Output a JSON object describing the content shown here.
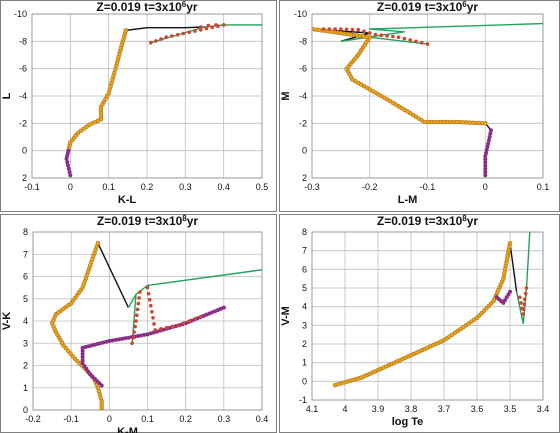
{
  "colors": {
    "track_black": "#111111",
    "track_green": "#22a15a",
    "marker_orange": "#f0a21a",
    "marker_purple": "#8a2e8a",
    "marker_red": "#d0432e",
    "grid": "#bdbdbd",
    "panel_border": "#7f7f7f"
  },
  "chart_data": [
    {
      "id": "panel_LK",
      "type": "line",
      "title": {
        "main": "Z=0.019  t=3x10",
        "exp": "6",
        "unit": "yr"
      },
      "xlabel": "K-L",
      "ylabel": "L",
      "xlim": [
        -0.1,
        0.5
      ],
      "ylim": [
        -10,
        2
      ],
      "y_inverted": true,
      "xticks": [
        -0.1,
        0,
        0.1,
        0.2,
        0.3,
        0.4,
        0.5
      ],
      "yticks": [
        -10,
        -8,
        -6,
        -4,
        -2,
        0,
        2
      ],
      "xticklabels": [
        "-0.1",
        "0",
        "0.1",
        "0.2",
        "0.3",
        "0.4",
        "0.5"
      ],
      "yticklabels": [
        "-10",
        "-8",
        "-6",
        "-4",
        "-2",
        "0",
        "2"
      ],
      "grid": true,
      "series": [
        {
          "style": "black",
          "points": [
            [
              0.0,
              1.8
            ],
            [
              -0.01,
              0.6
            ],
            [
              -0.005,
              0.0
            ],
            [
              0.0,
              -0.6
            ],
            [
              0.02,
              -1.3
            ],
            [
              0.05,
              -1.9
            ],
            [
              0.08,
              -2.3
            ],
            [
              0.08,
              -3.2
            ],
            [
              0.1,
              -4.2
            ],
            [
              0.11,
              -5.2
            ],
            [
              0.12,
              -6.2
            ],
            [
              0.13,
              -7.3
            ],
            [
              0.145,
              -8.8
            ],
            [
              0.2,
              -9.0
            ],
            [
              0.3,
              -9.0
            ],
            [
              0.35,
              -9.05
            ]
          ]
        },
        {
          "style": "green",
          "points": [
            [
              0.35,
              -9.05
            ],
            [
              0.4,
              -9.2
            ],
            [
              0.5,
              -9.2
            ]
          ]
        },
        {
          "style": "green",
          "points": [
            [
              0.35,
              -9.05
            ],
            [
              0.21,
              -7.9
            ]
          ]
        },
        {
          "style": "orange",
          "points": [
            [
              -0.005,
              0.0
            ],
            [
              0.0,
              -0.6
            ],
            [
              0.02,
              -1.3
            ],
            [
              0.05,
              -1.9
            ],
            [
              0.08,
              -2.3
            ],
            [
              0.08,
              -3.2
            ],
            [
              0.1,
              -4.2
            ],
            [
              0.11,
              -5.2
            ],
            [
              0.12,
              -6.2
            ],
            [
              0.13,
              -7.3
            ],
            [
              0.145,
              -8.8
            ]
          ]
        },
        {
          "style": "purple",
          "points": [
            [
              0.0,
              1.8
            ],
            [
              -0.01,
              0.6
            ],
            [
              -0.005,
              0.0
            ]
          ]
        },
        {
          "style": "red",
          "points": [
            [
              0.34,
              -9.05
            ],
            [
              0.36,
              -9.15
            ],
            [
              0.38,
              -9.2
            ],
            [
              0.4,
              -9.2
            ],
            [
              0.25,
              -8.3
            ],
            [
              0.21,
              -7.9
            ]
          ]
        }
      ]
    },
    {
      "id": "panel_ML",
      "type": "line",
      "title": {
        "main": "Z=0.019  t=3x10",
        "exp": "6",
        "unit": "yr"
      },
      "xlabel": "L-M",
      "ylabel": "M",
      "xlim": [
        -0.3,
        0.1
      ],
      "ylim": [
        -10,
        2
      ],
      "y_inverted": true,
      "xticks": [
        -0.3,
        -0.2,
        -0.1,
        0,
        0.1
      ],
      "yticks": [
        -10,
        -8,
        -6,
        -4,
        -2,
        0,
        2
      ],
      "xticklabels": [
        "-0.3",
        "-0.2",
        "-0.1",
        "0",
        "0.1"
      ],
      "yticklabels": [
        "-10",
        "-8",
        "-6",
        "-4",
        "-2",
        "0",
        "2"
      ],
      "grid": true,
      "series": [
        {
          "style": "black",
          "points": [
            [
              0.0,
              1.8
            ],
            [
              0.0,
              0.4
            ],
            [
              0.005,
              -0.5
            ],
            [
              0.01,
              -1.5
            ],
            [
              0.0,
              -2.0
            ],
            [
              -0.05,
              -2.1
            ],
            [
              -0.105,
              -2.1
            ],
            [
              -0.14,
              -3.0
            ],
            [
              -0.18,
              -4.0
            ],
            [
              -0.23,
              -5.2
            ],
            [
              -0.24,
              -6.0
            ],
            [
              -0.22,
              -7.0
            ],
            [
              -0.2,
              -8.3
            ],
            [
              -0.3,
              -8.9
            ],
            [
              -0.2,
              -8.6
            ],
            [
              -0.25,
              -8.0
            ]
          ]
        },
        {
          "style": "green",
          "points": [
            [
              -0.25,
              -8.0
            ],
            [
              -0.14,
              -8.7
            ],
            [
              -0.2,
              -8.9
            ],
            [
              0.1,
              -9.3
            ]
          ]
        },
        {
          "style": "green",
          "points": [
            [
              -0.2,
              -8.3
            ],
            [
              -0.1,
              -7.8
            ]
          ]
        },
        {
          "style": "orange",
          "points": [
            [
              0.0,
              -2.0
            ],
            [
              -0.05,
              -2.1
            ],
            [
              -0.105,
              -2.1
            ],
            [
              -0.14,
              -3.0
            ],
            [
              -0.18,
              -4.0
            ],
            [
              -0.23,
              -5.2
            ],
            [
              -0.24,
              -6.0
            ],
            [
              -0.22,
              -7.0
            ],
            [
              -0.2,
              -8.3
            ],
            [
              -0.3,
              -8.9
            ]
          ]
        },
        {
          "style": "purple",
          "points": [
            [
              0.0,
              1.8
            ],
            [
              0.0,
              0.4
            ],
            [
              0.005,
              -0.5
            ],
            [
              0.01,
              -1.5
            ]
          ]
        },
        {
          "style": "red",
          "points": [
            [
              -0.28,
              -8.9
            ],
            [
              -0.25,
              -8.9
            ],
            [
              -0.22,
              -8.85
            ],
            [
              -0.19,
              -8.5
            ],
            [
              -0.15,
              -8.3
            ],
            [
              -0.1,
              -7.8
            ]
          ]
        }
      ]
    },
    {
      "id": "panel_VK",
      "type": "line",
      "title": {
        "main": "Z=0.019  t=3x10",
        "exp": "8",
        "unit": "yr"
      },
      "xlabel": "K-M",
      "ylabel": "V-K",
      "xlim": [
        -0.2,
        0.4
      ],
      "ylim": [
        0,
        8
      ],
      "y_inverted": false,
      "xticks": [
        -0.2,
        -0.1,
        0,
        0.1,
        0.2,
        0.3,
        0.4
      ],
      "yticks": [
        0,
        1,
        2,
        3,
        4,
        5,
        6,
        7,
        8
      ],
      "xticklabels": [
        "-0.2",
        "-0.1",
        "0",
        "0.1",
        "0.2",
        "0.3",
        "0.4"
      ],
      "yticklabels": [
        "0",
        "1",
        "2",
        "3",
        "4",
        "5",
        "6",
        "7",
        "8"
      ],
      "grid": true,
      "series": [
        {
          "style": "black",
          "points": [
            [
              -0.02,
              -0.2
            ],
            [
              -0.02,
              0.4
            ],
            [
              -0.03,
              1.0
            ],
            [
              -0.04,
              1.4
            ],
            [
              -0.06,
              1.8
            ],
            [
              -0.09,
              2.3
            ],
            [
              -0.12,
              2.9
            ],
            [
              -0.14,
              3.5
            ],
            [
              -0.15,
              3.9
            ],
            [
              -0.14,
              4.3
            ],
            [
              -0.1,
              4.8
            ],
            [
              -0.07,
              5.5
            ],
            [
              -0.05,
              6.5
            ],
            [
              -0.03,
              7.5
            ],
            [
              0.05,
              4.6
            ]
          ]
        },
        {
          "style": "black",
          "points": [
            [
              -0.02,
              1.1
            ],
            [
              -0.05,
              1.6
            ],
            [
              -0.07,
              2.1
            ],
            [
              -0.07,
              2.8
            ],
            [
              0.0,
              3.1
            ],
            [
              0.1,
              3.4
            ],
            [
              0.2,
              3.9
            ],
            [
              0.3,
              4.6
            ]
          ]
        },
        {
          "style": "green",
          "points": [
            [
              0.05,
              4.6
            ],
            [
              0.07,
              5.2
            ],
            [
              0.1,
              5.6
            ],
            [
              0.4,
              6.3
            ]
          ]
        },
        {
          "style": "green",
          "points": [
            [
              0.07,
              5.2
            ],
            [
              0.06,
              3.0
            ]
          ]
        },
        {
          "style": "orange",
          "points": [
            [
              -0.02,
              -0.2
            ],
            [
              -0.02,
              0.4
            ],
            [
              -0.03,
              1.0
            ],
            [
              -0.04,
              1.4
            ],
            [
              -0.06,
              1.8
            ],
            [
              -0.09,
              2.3
            ],
            [
              -0.12,
              2.9
            ],
            [
              -0.14,
              3.5
            ],
            [
              -0.15,
              3.9
            ],
            [
              -0.14,
              4.3
            ],
            [
              -0.1,
              4.8
            ],
            [
              -0.07,
              5.5
            ],
            [
              -0.05,
              6.5
            ],
            [
              -0.03,
              7.5
            ]
          ]
        },
        {
          "style": "purple",
          "points": [
            [
              -0.02,
              1.1
            ],
            [
              -0.05,
              1.6
            ],
            [
              -0.07,
              2.1
            ],
            [
              -0.07,
              2.8
            ],
            [
              0.0,
              3.1
            ],
            [
              0.1,
              3.4
            ],
            [
              0.2,
              3.9
            ],
            [
              0.3,
              4.6
            ]
          ]
        },
        {
          "style": "red",
          "points": [
            [
              0.06,
              3.0
            ],
            [
              0.07,
              4.0
            ],
            [
              0.08,
              5.3
            ],
            [
              0.1,
              5.5
            ],
            [
              0.12,
              3.6
            ],
            [
              0.18,
              3.8
            ],
            [
              0.24,
              4.2
            ]
          ]
        }
      ]
    },
    {
      "id": "panel_VM",
      "type": "line",
      "title": {
        "main": "Z=0.019  t=3x10",
        "exp": "8",
        "unit": "yr"
      },
      "xlabel": "log Te",
      "ylabel": "V-M",
      "xlim": [
        4.1,
        3.4
      ],
      "ylim": [
        -1,
        8
      ],
      "y_inverted": false,
      "xticks": [
        4.1,
        4.0,
        3.9,
        3.8,
        3.7,
        3.6,
        3.5,
        3.4
      ],
      "yticks": [
        -1,
        0,
        1,
        2,
        3,
        4,
        5,
        6,
        7,
        8
      ],
      "xticklabels": [
        "4.1",
        "4",
        "3.9",
        "3.8",
        "3.7",
        "3.6",
        "3.5",
        "3.4"
      ],
      "yticklabels": [
        "-1",
        "0",
        "1",
        "2",
        "3",
        "4",
        "5",
        "6",
        "7",
        "8"
      ],
      "grid": true,
      "series": [
        {
          "style": "black",
          "points": [
            [
              4.03,
              -0.2
            ],
            [
              3.95,
              0.2
            ],
            [
              3.9,
              0.6
            ],
            [
              3.85,
              1.0
            ],
            [
              3.8,
              1.4
            ],
            [
              3.75,
              1.8
            ],
            [
              3.7,
              2.2
            ],
            [
              3.65,
              2.8
            ],
            [
              3.6,
              3.4
            ],
            [
              3.55,
              4.3
            ],
            [
              3.52,
              5.5
            ],
            [
              3.5,
              7.4
            ],
            [
              3.48,
              4.8
            ]
          ]
        },
        {
          "style": "black",
          "points": [
            [
              3.52,
              4.2
            ],
            [
              3.5,
              4.8
            ]
          ]
        },
        {
          "style": "green",
          "points": [
            [
              3.48,
              4.8
            ],
            [
              3.46,
              3.1
            ],
            [
              3.45,
              5.0
            ],
            [
              3.44,
              8.0
            ]
          ]
        },
        {
          "style": "orange",
          "points": [
            [
              4.03,
              -0.2
            ],
            [
              3.95,
              0.2
            ],
            [
              3.9,
              0.6
            ],
            [
              3.85,
              1.0
            ],
            [
              3.8,
              1.4
            ],
            [
              3.75,
              1.8
            ],
            [
              3.7,
              2.2
            ],
            [
              3.65,
              2.8
            ],
            [
              3.6,
              3.4
            ],
            [
              3.55,
              4.3
            ],
            [
              3.52,
              5.5
            ],
            [
              3.5,
              7.4
            ]
          ]
        },
        {
          "style": "purple",
          "points": [
            [
              3.54,
              4.5
            ],
            [
              3.52,
              4.2
            ],
            [
              3.5,
              4.8
            ]
          ]
        },
        {
          "style": "red",
          "points": [
            [
              3.47,
              4.5
            ],
            [
              3.46,
              3.6
            ],
            [
              3.455,
              4.4
            ],
            [
              3.45,
              5.0
            ]
          ]
        }
      ]
    }
  ]
}
